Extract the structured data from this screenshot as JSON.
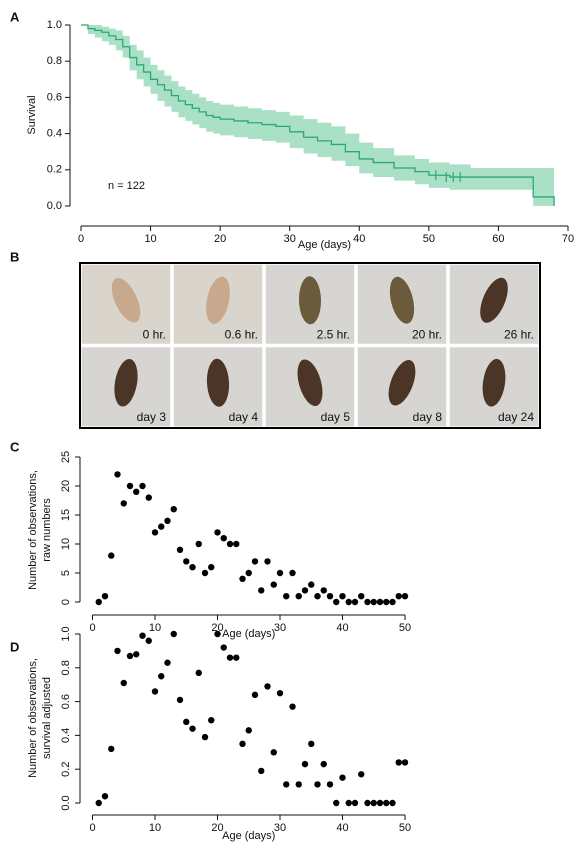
{
  "chart_data": [
    {
      "panel": "A",
      "type": "step",
      "x_label": "Age (days)",
      "y_label": "Survival",
      "annotation": "n = 122",
      "x": [
        0,
        1,
        2,
        3,
        4,
        5,
        6,
        7,
        8,
        9,
        10,
        11,
        12,
        13,
        14,
        15,
        16,
        17,
        18,
        19,
        20,
        22,
        24,
        26,
        28,
        30,
        32,
        34,
        36,
        38,
        40,
        42,
        45,
        48,
        50,
        53,
        56,
        65,
        68
      ],
      "values": [
        1.0,
        0.98,
        0.97,
        0.96,
        0.94,
        0.92,
        0.88,
        0.82,
        0.78,
        0.74,
        0.7,
        0.67,
        0.64,
        0.61,
        0.58,
        0.56,
        0.54,
        0.52,
        0.5,
        0.49,
        0.48,
        0.47,
        0.46,
        0.45,
        0.44,
        0.41,
        0.38,
        0.36,
        0.34,
        0.3,
        0.26,
        0.24,
        0.21,
        0.19,
        0.17,
        0.16,
        0.16,
        0.05,
        0.0
      ],
      "band_upper": [
        1.0,
        1.0,
        1.0,
        0.99,
        0.98,
        0.97,
        0.94,
        0.89,
        0.86,
        0.82,
        0.78,
        0.75,
        0.72,
        0.69,
        0.66,
        0.64,
        0.62,
        0.6,
        0.58,
        0.57,
        0.56,
        0.55,
        0.54,
        0.53,
        0.52,
        0.5,
        0.48,
        0.46,
        0.44,
        0.4,
        0.35,
        0.32,
        0.28,
        0.26,
        0.24,
        0.23,
        0.21,
        0.21,
        null
      ],
      "band_lower": [
        1.0,
        0.95,
        0.93,
        0.91,
        0.89,
        0.86,
        0.82,
        0.75,
        0.7,
        0.66,
        0.62,
        0.58,
        0.55,
        0.52,
        0.49,
        0.47,
        0.45,
        0.43,
        0.41,
        0.4,
        0.39,
        0.38,
        0.37,
        0.36,
        0.35,
        0.32,
        0.29,
        0.27,
        0.25,
        0.22,
        0.18,
        0.16,
        0.14,
        0.12,
        0.1,
        0.09,
        0.09,
        0.0,
        null
      ],
      "censored_x": [
        51,
        52.5,
        53.5,
        54.5
      ],
      "censored_values": [
        0.17,
        0.16,
        0.16,
        0.16
      ],
      "color": "#2aa876",
      "band_color": "#a9e0c6",
      "xlim": [
        0,
        70
      ],
      "ylim": [
        0,
        1
      ],
      "xticks": [
        0,
        10,
        20,
        30,
        40,
        50,
        60,
        70
      ],
      "yticks": [
        {
          "value": 0,
          "label": "0.0"
        },
        0.2,
        0.4,
        0.6,
        0.8,
        {
          "value": 1,
          "label": "1.0"
        }
      ]
    },
    {
      "panel": "C",
      "type": "scatter",
      "x_label": "Age (days)",
      "y_label": [
        "Number of observations,",
        "raw numbers"
      ],
      "x": [
        1,
        2,
        3,
        4,
        5,
        6,
        7,
        8,
        9,
        10,
        11,
        12,
        13,
        14,
        15,
        16,
        17,
        18,
        19,
        20,
        21,
        22,
        23,
        24,
        25,
        26,
        27,
        28,
        29,
        30,
        31,
        32,
        33,
        34,
        35,
        36,
        37,
        38,
        39,
        40,
        41,
        42,
        43,
        44,
        45,
        46,
        47,
        48,
        49,
        50
      ],
      "values": [
        0,
        1,
        8,
        22,
        17,
        20,
        19,
        20,
        18,
        12,
        13,
        14,
        16,
        9,
        7,
        6,
        10,
        5,
        6,
        12,
        11,
        10,
        10,
        4,
        5,
        7,
        2,
        7,
        3,
        5,
        1,
        5,
        1,
        2,
        3,
        1,
        2,
        1,
        0,
        1,
        0,
        0,
        1,
        0,
        0,
        0,
        0,
        0,
        1,
        1
      ],
      "color": "#000000",
      "xlim": [
        0,
        50
      ],
      "ylim": [
        0,
        25
      ],
      "xticks": [
        0,
        10,
        20,
        30,
        40,
        50
      ],
      "yticks": [
        0,
        5,
        10,
        15,
        20,
        25
      ]
    },
    {
      "panel": "D",
      "type": "scatter",
      "x_label": "Age (days)",
      "y_label": [
        "Number of observations,",
        "survival adjusted"
      ],
      "x": [
        1,
        2,
        3,
        4,
        5,
        6,
        7,
        8,
        9,
        10,
        11,
        12,
        13,
        14,
        15,
        16,
        17,
        18,
        19,
        20,
        21,
        22,
        23,
        24,
        25,
        26,
        27,
        28,
        29,
        30,
        31,
        32,
        33,
        34,
        35,
        36,
        37,
        38,
        39,
        40,
        41,
        42,
        43,
        44,
        45,
        46,
        47,
        48,
        49,
        50
      ],
      "values": [
        0,
        0.04,
        0.32,
        0.9,
        0.71,
        0.87,
        0.88,
        0.99,
        0.96,
        0.66,
        0.75,
        0.83,
        1.0,
        0.61,
        0.48,
        0.44,
        0.77,
        0.39,
        0.49,
        1.0,
        0.92,
        0.86,
        0.86,
        0.35,
        0.43,
        0.64,
        0.19,
        0.69,
        0.3,
        0.65,
        0.11,
        0.57,
        0.11,
        0.23,
        0.35,
        0.11,
        0.23,
        0.11,
        0,
        0.15,
        0,
        0,
        0.17,
        0,
        0,
        0,
        0,
        0,
        0.24,
        0.24
      ],
      "color": "#000000",
      "xlim": [
        0,
        50
      ],
      "ylim": [
        0,
        1
      ],
      "xticks": [
        0,
        10,
        20,
        30,
        40,
        50
      ],
      "yticks": [
        {
          "value": 0,
          "label": "0.0"
        },
        0.2,
        0.4,
        0.6,
        0.8,
        {
          "value": 1,
          "label": "1.0"
        }
      ]
    }
  ],
  "photo_panel": {
    "panel": "B",
    "captions": [
      "0 hr.",
      "0.6 hr.",
      "2.5 hr.",
      "20 hr.",
      "26 hr.",
      "day 3",
      "day 4",
      "day 5",
      "day 8",
      "day 24"
    ]
  }
}
